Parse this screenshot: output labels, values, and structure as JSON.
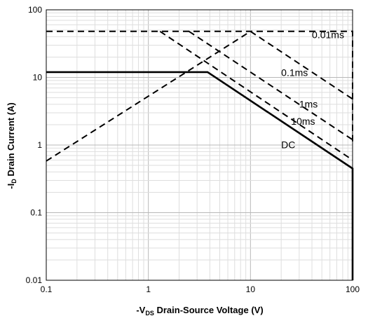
{
  "chart_data": {
    "type": "line",
    "title": "",
    "xlabel": {
      "pre": "-V",
      "sub": "DS",
      "post": " Drain-Source Voltage (V)"
    },
    "ylabel": {
      "pre": "-I",
      "sub": "D",
      "post": " Drain Current (A)"
    },
    "x_scale": "log",
    "y_scale": "log",
    "xlim": [
      0.1,
      100
    ],
    "ylim": [
      0.01,
      100
    ],
    "x_ticks": [
      {
        "value": 0.1,
        "label": "0.1"
      },
      {
        "value": 1,
        "label": "1"
      },
      {
        "value": 10,
        "label": "10"
      },
      {
        "value": 100,
        "label": "100"
      }
    ],
    "y_ticks": [
      {
        "value": 0.01,
        "label": "0.01"
      },
      {
        "value": 0.1,
        "label": "0.1"
      },
      {
        "value": 1,
        "label": "1"
      },
      {
        "value": 10,
        "label": "10"
      },
      {
        "value": 100,
        "label": "100"
      }
    ],
    "grid": true,
    "legend": "none",
    "series": [
      {
        "name": "DC",
        "style": "solid",
        "points": [
          [
            0.1,
            12
          ],
          [
            3.8,
            12
          ],
          [
            100,
            0.45
          ],
          [
            100,
            0.01
          ]
        ]
      },
      {
        "name": "10ms",
        "style": "dashed",
        "points": [
          [
            1.3,
            48
          ],
          [
            100,
            0.6
          ]
        ]
      },
      {
        "name": "1ms",
        "style": "dashed",
        "points": [
          [
            2.5,
            48
          ],
          [
            100,
            1.2
          ]
        ]
      },
      {
        "name": "0.1ms",
        "style": "dashed",
        "points": [
          [
            10,
            48
          ],
          [
            100,
            4.8
          ]
        ]
      },
      {
        "name": "0.01ms",
        "style": "dashed",
        "points": [
          [
            0.1,
            48
          ],
          [
            100,
            48
          ],
          [
            100,
            1.0
          ]
        ]
      },
      {
        "name": "",
        "style": "dashed",
        "points": [
          [
            0.1,
            0.58
          ],
          [
            10,
            48
          ]
        ]
      }
    ],
    "annotations": [
      {
        "text": "0.01ms",
        "x": 40,
        "y": 38
      },
      {
        "text": "0.1ms",
        "x": 20,
        "y": 10.5
      },
      {
        "text": "1ms",
        "x": 30,
        "y": 3.6
      },
      {
        "text": "10ms",
        "x": 25,
        "y": 2.0
      },
      {
        "text": "DC",
        "x": 20,
        "y": 0.9
      }
    ]
  }
}
